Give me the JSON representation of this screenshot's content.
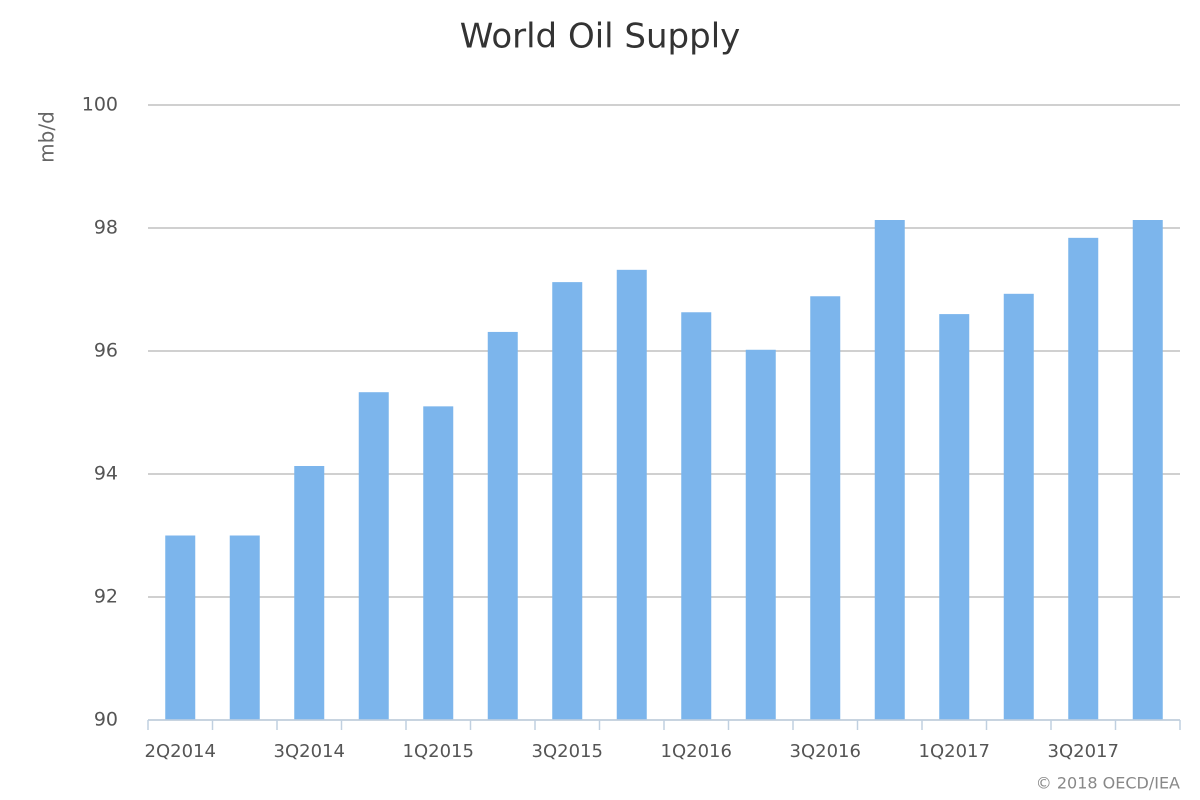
{
  "chart_data": {
    "type": "bar",
    "title": "World Oil Supply",
    "y_label": "mb/d",
    "source": "© 2018 OECD/IEA",
    "categories": [
      "2Q2014",
      null,
      "3Q2014",
      null,
      "1Q2015",
      null,
      "3Q2015",
      null,
      "1Q2016",
      null,
      "3Q2016",
      null,
      "1Q2017",
      null,
      "3Q2017",
      null
    ],
    "values": [
      93.0,
      93.0,
      94.13,
      95.33,
      95.1,
      96.31,
      97.12,
      97.32,
      96.63,
      96.02,
      96.89,
      98.13,
      96.6,
      96.93,
      97.84,
      98.13
    ],
    "color": "#7cb5ec",
    "ylim": [
      90,
      100
    ],
    "yticks": [
      90,
      92,
      94,
      96,
      98,
      100
    ],
    "grid": true
  }
}
